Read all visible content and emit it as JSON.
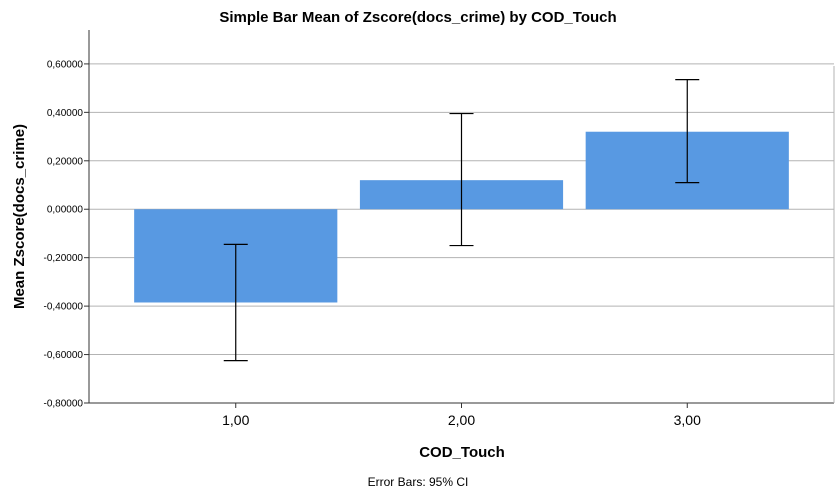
{
  "chart_data": {
    "type": "bar",
    "title": "Simple Bar Mean of Zscore(docs_crime) by COD_Touch",
    "xlabel": "COD_Touch",
    "ylabel": "Mean Zscore(docs_crime)",
    "categories": [
      "1,00",
      "2,00",
      "3,00"
    ],
    "values": [
      -0.385,
      0.12,
      0.32
    ],
    "error_bars": {
      "label": "Error Bars: 95% CI",
      "lower": [
        -0.625,
        -0.15,
        0.11
      ],
      "upper": [
        -0.145,
        0.395,
        0.535
      ]
    },
    "ylim": [
      -0.8,
      0.74
    ],
    "yticks": [
      -0.8,
      -0.6,
      -0.4,
      -0.2,
      0.0,
      0.2,
      0.4,
      0.6
    ],
    "ytick_labels": [
      "-0,80000",
      "-0,60000",
      "-0,40000",
      "-0,20000",
      "0,00000",
      "0,20000",
      "0,40000",
      "0,60000"
    ],
    "grid": true,
    "bar_color": "#5899E2"
  }
}
